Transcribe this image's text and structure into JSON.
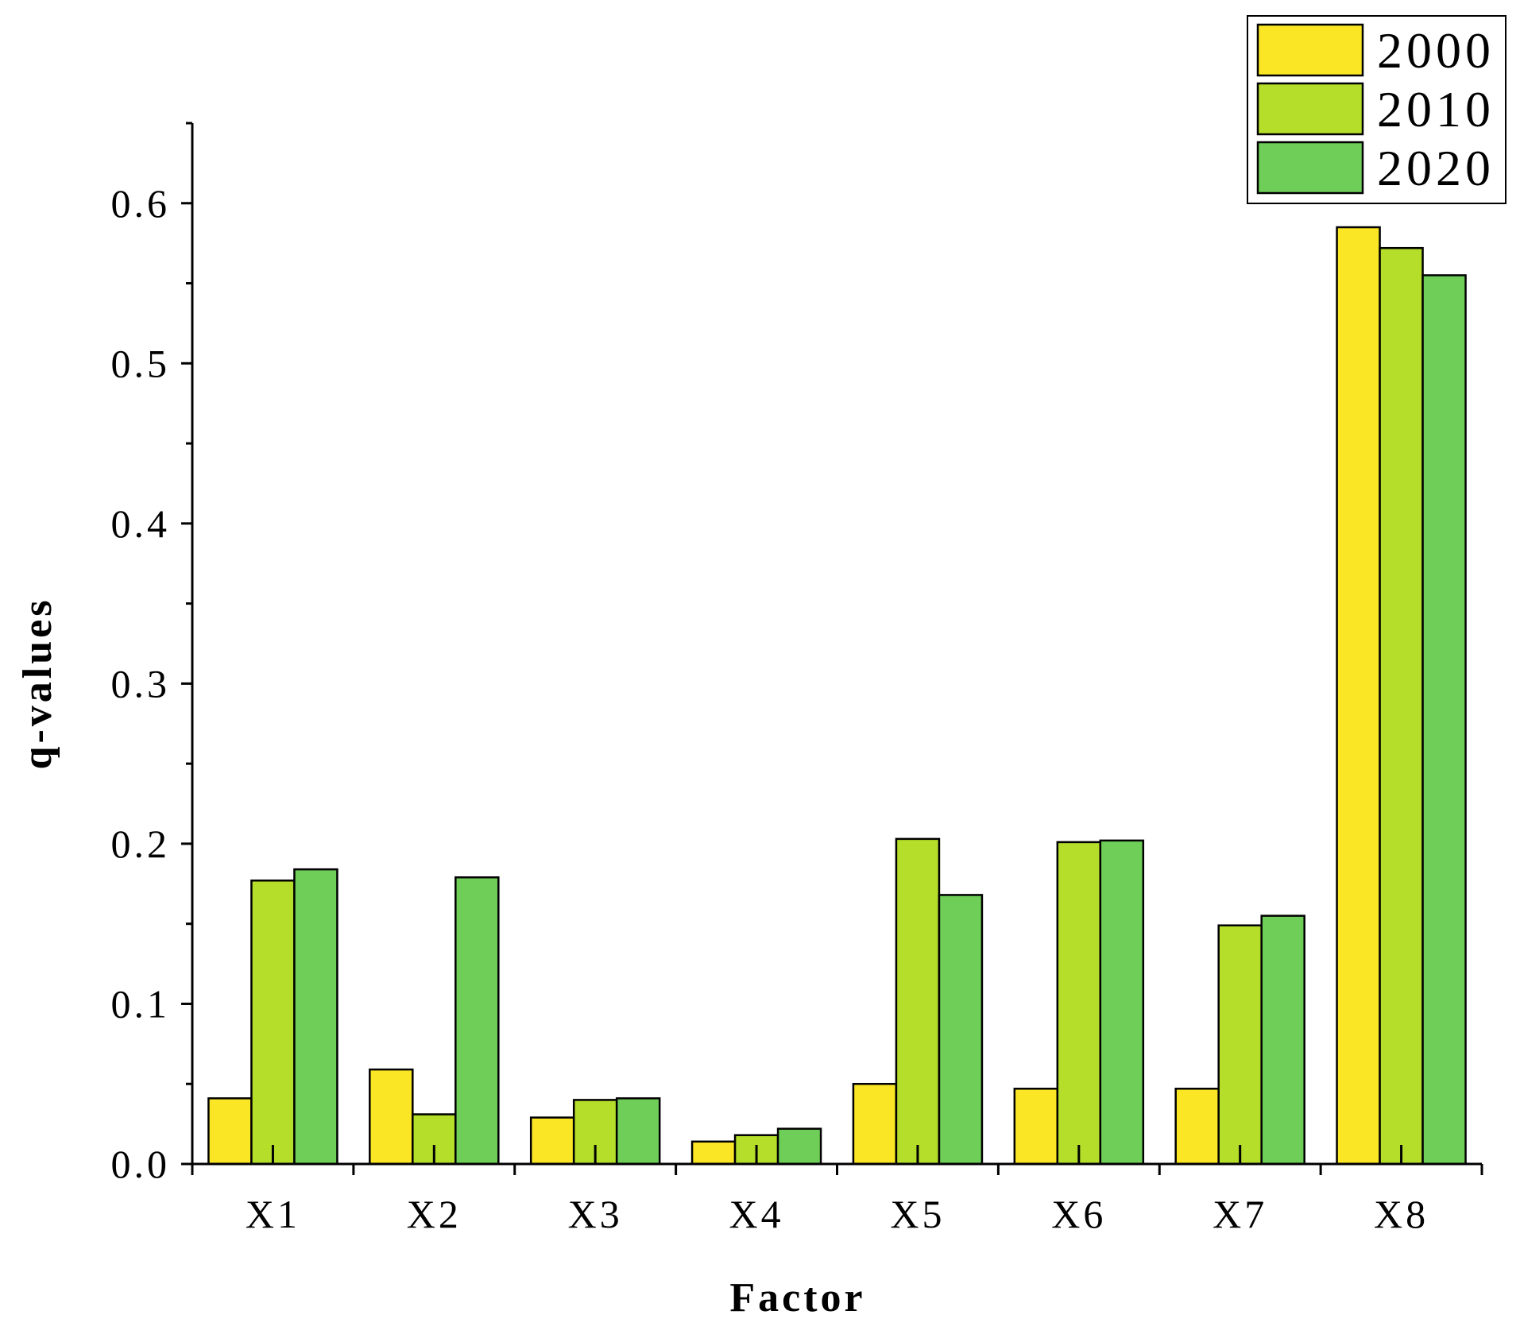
{
  "chart_data": {
    "type": "bar",
    "title": "",
    "xlabel": "Factor",
    "ylabel": "q-values",
    "categories": [
      "X1",
      "X2",
      "X3",
      "X4",
      "X5",
      "X6",
      "X7",
      "X8"
    ],
    "series": [
      {
        "name": "2000",
        "color": "#fbe625",
        "values": [
          0.041,
          0.059,
          0.029,
          0.014,
          0.05,
          0.047,
          0.047,
          0.585
        ]
      },
      {
        "name": "2010",
        "color": "#b5de2b",
        "values": [
          0.177,
          0.031,
          0.04,
          0.018,
          0.203,
          0.201,
          0.149,
          0.572
        ]
      },
      {
        "name": "2020",
        "color": "#6ece58",
        "values": [
          0.184,
          0.179,
          0.041,
          0.022,
          0.168,
          0.202,
          0.155,
          0.555
        ]
      }
    ],
    "ylim": [
      0,
      0.65
    ],
    "yticks": [
      "0.0",
      "0.1",
      "0.2",
      "0.3",
      "0.4",
      "0.5",
      "0.6"
    ],
    "grid": false,
    "legend_position": "top-right"
  }
}
